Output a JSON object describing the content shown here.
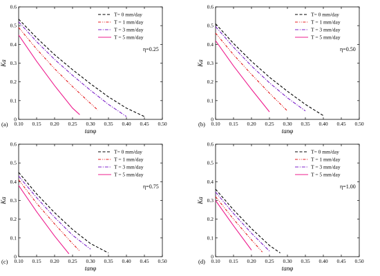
{
  "chart_data": [
    {
      "type": "line",
      "panel_label": "(a)",
      "annotation": "η=0.25",
      "xlabel": "tanφ",
      "ylabel": "Ka",
      "xlim": [
        0.1,
        0.5
      ],
      "ylim": [
        0,
        0.6
      ],
      "xticks": [
        "0.10",
        "0.15",
        "0.20",
        "0.25",
        "0.30",
        "0.35",
        "0.40",
        "0.45",
        "0.50"
      ],
      "yticks": [
        "0",
        "0.1",
        "0.2",
        "0.3",
        "0.4",
        "0.5",
        "0.6"
      ],
      "legend_position": "top-right",
      "series": [
        {
          "name": "T=  0 mm/day",
          "color": "#000000",
          "dash": "dashed",
          "x": [
            0.1,
            0.15,
            0.2,
            0.25,
            0.3,
            0.35,
            0.4,
            0.45
          ],
          "y": [
            0.535,
            0.435,
            0.345,
            0.265,
            0.19,
            0.12,
            0.06,
            0.015
          ]
        },
        {
          "name": "T = 1 mm/day",
          "color": "#e41a1c",
          "dash": "dashdotdot",
          "x": [
            0.1,
            0.15,
            0.2,
            0.25,
            0.3,
            0.32
          ],
          "y": [
            0.49,
            0.375,
            0.27,
            0.175,
            0.085,
            0.05
          ]
        },
        {
          "name": "T = 3 mm/day",
          "color": "#7b1fc9",
          "dash": "dashdot",
          "x": [
            0.1,
            0.15,
            0.2,
            0.25,
            0.3,
            0.35,
            0.4
          ],
          "y": [
            0.52,
            0.415,
            0.32,
            0.235,
            0.155,
            0.08,
            0.015
          ]
        },
        {
          "name": "T = 5 mm/day",
          "color": "#ee1c8e",
          "dash": "solid",
          "x": [
            0.1,
            0.15,
            0.2,
            0.25,
            0.27
          ],
          "y": [
            0.45,
            0.31,
            0.18,
            0.06,
            0.025
          ]
        }
      ]
    },
    {
      "type": "line",
      "panel_label": "(b)",
      "annotation": "η=0.50",
      "xlabel": "tanφ",
      "ylabel": "Ka",
      "xlim": [
        0.1,
        0.5
      ],
      "ylim": [
        0,
        0.6
      ],
      "xticks": [
        "0.10",
        "0.15",
        "0.20",
        "0.25",
        "0.30",
        "0.35",
        "0.40",
        "0.45",
        "0.50"
      ],
      "yticks": [
        "0",
        "0.1",
        "0.2",
        "0.3",
        "0.4",
        "0.5",
        "0.6"
      ],
      "legend_position": "top-right",
      "series": [
        {
          "name": "T=  0 mm/day",
          "color": "#000000",
          "dash": "dashed",
          "x": [
            0.1,
            0.15,
            0.2,
            0.25,
            0.3,
            0.35,
            0.4
          ],
          "y": [
            0.51,
            0.405,
            0.31,
            0.225,
            0.15,
            0.08,
            0.02
          ]
        },
        {
          "name": "T = 1 mm/day",
          "color": "#e41a1c",
          "dash": "dashdotdot",
          "x": [
            0.1,
            0.15,
            0.2,
            0.25,
            0.3
          ],
          "y": [
            0.46,
            0.345,
            0.24,
            0.14,
            0.045
          ]
        },
        {
          "name": "T = 3 mm/day",
          "color": "#7b1fc9",
          "dash": "dashdot",
          "x": [
            0.1,
            0.15,
            0.2,
            0.25,
            0.3,
            0.35
          ],
          "y": [
            0.495,
            0.385,
            0.285,
            0.195,
            0.115,
            0.045
          ]
        },
        {
          "name": "T = 5 mm/day",
          "color": "#ee1c8e",
          "dash": "solid",
          "x": [
            0.1,
            0.15,
            0.2,
            0.25
          ],
          "y": [
            0.42,
            0.285,
            0.16,
            0.04
          ]
        }
      ]
    },
    {
      "type": "line",
      "panel_label": "(c)",
      "annotation": "η=0.75",
      "xlabel": "tanφ",
      "ylabel": "Ka",
      "xlim": [
        0.1,
        0.5
      ],
      "ylim": [
        0,
        0.6
      ],
      "xticks": [
        "0.10",
        "0.15",
        "0.20",
        "0.25",
        "0.30",
        "0.35",
        "0.40",
        "0.45",
        "0.50"
      ],
      "yticks": [
        "0",
        "0.1",
        "0.2",
        "0.3",
        "0.4",
        "0.5",
        "0.6"
      ],
      "legend_position": "top-right",
      "series": [
        {
          "name": "T=  0 mm/day",
          "color": "#000000",
          "dash": "dashed",
          "x": [
            0.1,
            0.15,
            0.2,
            0.25,
            0.3,
            0.35
          ],
          "y": [
            0.45,
            0.335,
            0.235,
            0.145,
            0.07,
            0.02
          ]
        },
        {
          "name": "T = 1 mm/day",
          "color": "#e41a1c",
          "dash": "dashdotdot",
          "x": [
            0.1,
            0.15,
            0.2,
            0.25,
            0.27
          ],
          "y": [
            0.41,
            0.285,
            0.175,
            0.07,
            0.03
          ]
        },
        {
          "name": "T = 3 mm/day",
          "color": "#7b1fc9",
          "dash": "dashdot",
          "x": [
            0.1,
            0.15,
            0.2,
            0.25,
            0.3
          ],
          "y": [
            0.43,
            0.315,
            0.21,
            0.115,
            0.04
          ]
        },
        {
          "name": "T = 5 mm/day",
          "color": "#ee1c8e",
          "dash": "solid",
          "x": [
            0.1,
            0.15,
            0.2,
            0.24
          ],
          "y": [
            0.38,
            0.24,
            0.11,
            0.015
          ]
        }
      ]
    },
    {
      "type": "line",
      "panel_label": "(d)",
      "annotation": "η=1.00",
      "xlabel": "tanφ",
      "ylabel": "Ka",
      "xlim": [
        0.1,
        0.5
      ],
      "ylim": [
        0,
        0.6
      ],
      "xticks": [
        "0.10",
        "0.15",
        "0.20",
        "0.25",
        "0.30",
        "0.35",
        "0.40",
        "0.45",
        "0.50"
      ],
      "yticks": [
        "0",
        "0.1",
        "0.2",
        "0.3",
        "0.4",
        "0.5",
        "0.6"
      ],
      "legend_position": "top-right",
      "series": [
        {
          "name": "T=  0 mm/day",
          "color": "#000000",
          "dash": "dashed",
          "x": [
            0.1,
            0.15,
            0.2,
            0.25,
            0.28
          ],
          "y": [
            0.36,
            0.25,
            0.15,
            0.06,
            0.02
          ]
        },
        {
          "name": "T = 1 mm/day",
          "color": "#e41a1c",
          "dash": "dashdotdot",
          "x": [
            0.1,
            0.15,
            0.2,
            0.23
          ],
          "y": [
            0.32,
            0.2,
            0.09,
            0.025
          ]
        },
        {
          "name": "T = 3 mm/day",
          "color": "#7b1fc9",
          "dash": "dashdot",
          "x": [
            0.1,
            0.15,
            0.2,
            0.25
          ],
          "y": [
            0.345,
            0.23,
            0.125,
            0.03
          ]
        },
        {
          "name": "T = 5 mm/day",
          "color": "#ee1c8e",
          "dash": "solid",
          "x": [
            0.1,
            0.15,
            0.2
          ],
          "y": [
            0.3,
            0.165,
            0.035
          ]
        }
      ]
    }
  ]
}
